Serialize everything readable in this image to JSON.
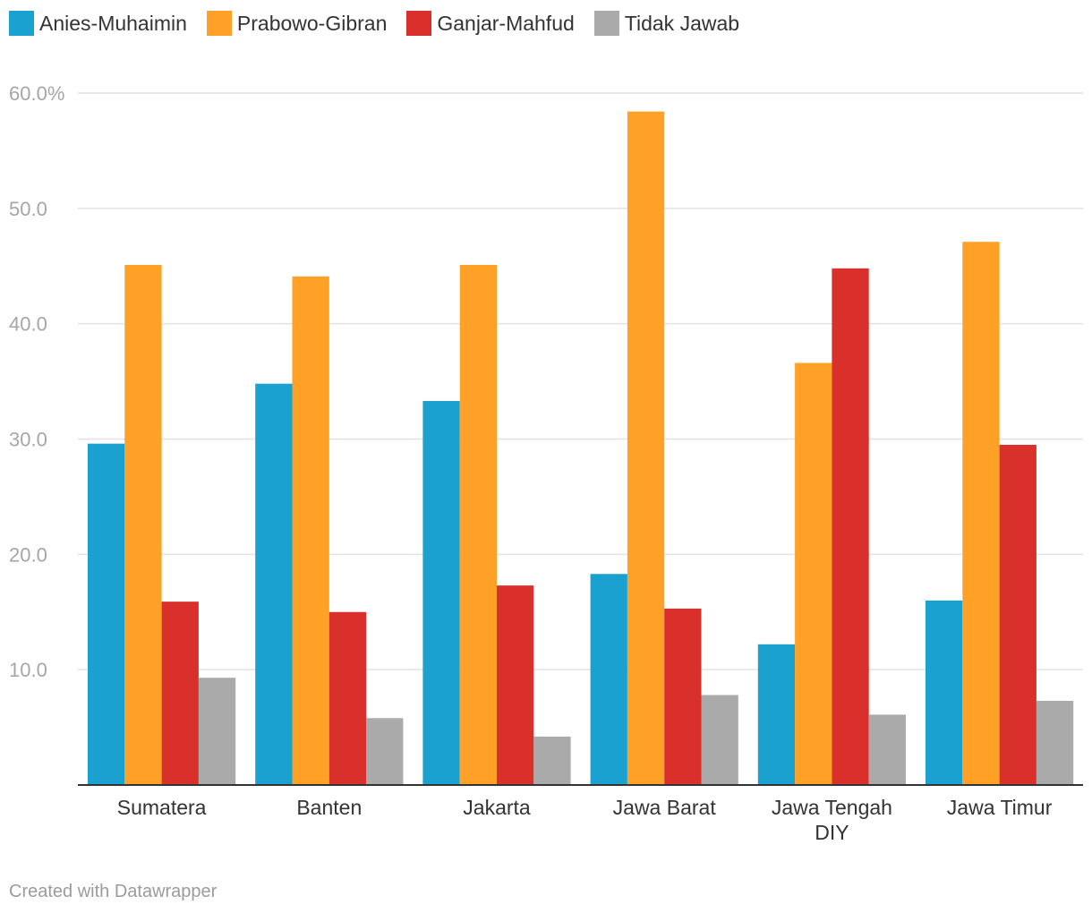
{
  "chart_data": {
    "type": "bar",
    "categories": [
      "Sumatera",
      "Banten",
      "Jakarta",
      "Jawa Barat",
      "Jawa Tengah DIY",
      "Jawa Timur"
    ],
    "series": [
      {
        "name": "Anies-Muhaimin",
        "color": "#1aa1cf",
        "values": [
          29.6,
          34.8,
          33.3,
          18.3,
          12.2,
          16.0
        ]
      },
      {
        "name": "Prabowo-Gibran",
        "color": "#ffa126",
        "values": [
          45.1,
          44.1,
          45.1,
          58.4,
          36.6,
          47.1
        ]
      },
      {
        "name": "Ganjar-Mahfud",
        "color": "#d9302b",
        "values": [
          15.9,
          15.0,
          17.3,
          15.3,
          44.8,
          29.5
        ]
      },
      {
        "name": "Tidak Jawab",
        "color": "#aaaaaa",
        "values": [
          9.3,
          5.8,
          4.2,
          7.8,
          6.1,
          7.3
        ]
      }
    ],
    "yticks": [
      "10.0",
      "20.0",
      "30.0",
      "40.0",
      "50.0",
      "60.0%"
    ],
    "ylim": [
      0,
      60
    ],
    "grid": true,
    "legend": "top-left"
  },
  "footer": "Created with Datawrapper"
}
